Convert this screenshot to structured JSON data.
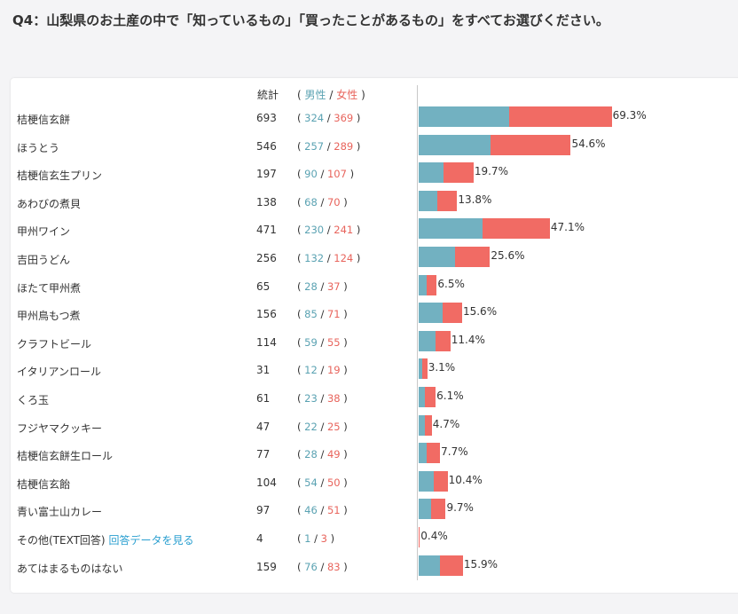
{
  "question": "Q4：山梨県のお土産の中で「知っているもの」「買ったことがあるもの」をすべてお選びください。",
  "header": {
    "total_label": "統計",
    "open_paren": "(",
    "male_label": "男性",
    "slash": "/",
    "female_label": "女性",
    "close_paren": ")"
  },
  "colors": {
    "male": "#72b1c1",
    "female": "#f16b64"
  },
  "chart_data": {
    "type": "bar",
    "orientation": "horizontal",
    "stacked": true,
    "categories": [
      "桔梗信玄餅",
      "ほうとう",
      "桔梗信玄生プリン",
      "あわびの煮貝",
      "甲州ワイン",
      "吉田うどん",
      "ほたて甲州煮",
      "甲州鳥もつ煮",
      "クラフトビール",
      "イタリアンロール",
      "くろ玉",
      "フジヤマクッキー",
      "桔梗信玄餅生ロール",
      "桔梗信玄飴",
      "青い富士山カレー",
      "その他(TEXT回答)",
      "あてはまるものはない"
    ],
    "totals": [
      693,
      546,
      197,
      138,
      471,
      256,
      65,
      156,
      114,
      31,
      61,
      47,
      77,
      104,
      97,
      4,
      159
    ],
    "series": [
      {
        "name": "男性",
        "values": [
          324,
          257,
          90,
          68,
          230,
          132,
          28,
          85,
          59,
          12,
          23,
          22,
          28,
          54,
          46,
          1,
          76
        ]
      },
      {
        "name": "女性",
        "values": [
          369,
          289,
          107,
          70,
          241,
          124,
          37,
          71,
          55,
          19,
          38,
          25,
          49,
          50,
          51,
          3,
          83
        ]
      }
    ],
    "percent_labels": [
      "69.3%",
      "54.6%",
      "19.7%",
      "13.8%",
      "47.1%",
      "25.6%",
      "6.5%",
      "15.6%",
      "11.4%",
      "3.1%",
      "6.1%",
      "4.7%",
      "7.7%",
      "10.4%",
      "9.7%",
      "0.4%",
      "15.9%"
    ],
    "other_link_label": "回答データを見る"
  }
}
